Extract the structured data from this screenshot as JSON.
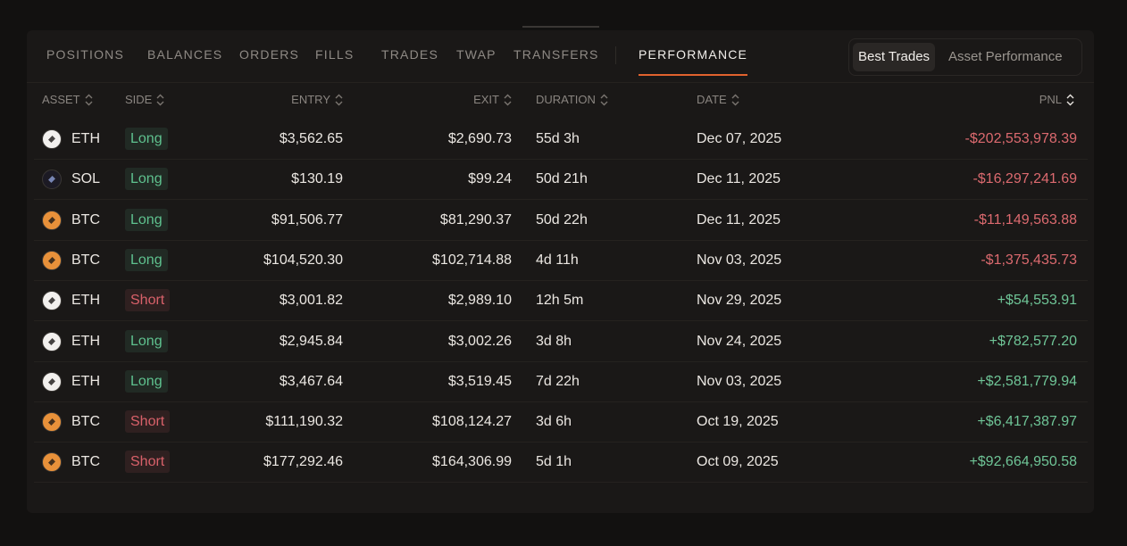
{
  "tabs": [
    {
      "label": "POSITIONS",
      "active": false
    },
    {
      "label": "BALANCES",
      "active": false
    },
    {
      "label": "ORDERS",
      "active": false
    },
    {
      "label": "FILLS",
      "active": false
    },
    {
      "label": "TRADES",
      "active": false
    },
    {
      "label": "TWAP",
      "active": false
    },
    {
      "label": "TRANSFERS",
      "active": false
    },
    {
      "label": "PERFORMANCE",
      "active": true
    }
  ],
  "view_toggle": [
    {
      "label": "Best Trades",
      "active": true
    },
    {
      "label": "Asset Performance",
      "active": false
    }
  ],
  "table": {
    "headers": [
      "ASSET",
      "SIDE",
      "ENTRY",
      "EXIT",
      "DURATION",
      "DATE",
      "PNL"
    ],
    "rows": [
      {
        "asset": "ETH",
        "icon_color": "#f2f0ee",
        "side": "Long",
        "side_color": "#5fc28f",
        "entry": "$3,562.65",
        "exit": "$2,690.73",
        "duration": "55d 3h",
        "date": "Dec 07, 2025",
        "pnl": "-$202,553,978.39",
        "pnl_color": "#dc6a6f"
      },
      {
        "asset": "SOL",
        "icon_color": "#1c1a24",
        "side": "Long",
        "side_color": "#5fc28f",
        "entry": "$130.19",
        "exit": "$99.24",
        "duration": "50d 21h",
        "date": "Dec 11, 2025",
        "pnl": "-$16,297,241.69",
        "pnl_color": "#dc6a6f"
      },
      {
        "asset": "BTC",
        "icon_color": "#e8913a",
        "side": "Long",
        "side_color": "#5fc28f",
        "entry": "$91,506.77",
        "exit": "$81,290.37",
        "duration": "50d 22h",
        "date": "Dec 11, 2025",
        "pnl": "-$11,149,563.88",
        "pnl_color": "#dc6a6f"
      },
      {
        "asset": "BTC",
        "icon_color": "#e8913a",
        "side": "Long",
        "side_color": "#5fc28f",
        "entry": "$104,520.30",
        "exit": "$102,714.88",
        "duration": "4d 11h",
        "date": "Nov 03, 2025",
        "pnl": "-$1,375,435.73",
        "pnl_color": "#dc6a6f"
      },
      {
        "asset": "ETH",
        "icon_color": "#f2f0ee",
        "side": "Short",
        "side_color": "#d9616a",
        "entry": "$3,001.82",
        "exit": "$2,989.10",
        "duration": "12h 5m",
        "date": "Nov 29, 2025",
        "pnl": "+$54,553.91",
        "pnl_color": "#6fc597"
      },
      {
        "asset": "ETH",
        "icon_color": "#f2f0ee",
        "side": "Long",
        "side_color": "#5fc28f",
        "entry": "$2,945.84",
        "exit": "$3,002.26",
        "duration": "3d 8h",
        "date": "Nov 24, 2025",
        "pnl": "+$782,577.20",
        "pnl_color": "#6fc597"
      },
      {
        "asset": "ETH",
        "icon_color": "#f2f0ee",
        "side": "Long",
        "side_color": "#5fc28f",
        "entry": "$3,467.64",
        "exit": "$3,519.45",
        "duration": "7d 22h",
        "date": "Nov 03, 2025",
        "pnl": "+$2,581,779.94",
        "pnl_color": "#6fc597"
      },
      {
        "asset": "BTC",
        "icon_color": "#e8913a",
        "side": "Short",
        "side_color": "#d9616a",
        "entry": "$111,190.32",
        "exit": "$108,124.27",
        "duration": "3d 6h",
        "date": "Oct 19, 2025",
        "pnl": "+$6,417,387.97",
        "pnl_color": "#6fc597"
      },
      {
        "asset": "BTC",
        "icon_color": "#e8913a",
        "side": "Short",
        "side_color": "#d9616a",
        "entry": "$177,292.46",
        "exit": "$164,306.99",
        "duration": "5d 1h",
        "date": "Oct 09, 2025",
        "pnl": "+$92,664,950.58",
        "pnl_color": "#6fc597"
      }
    ]
  }
}
